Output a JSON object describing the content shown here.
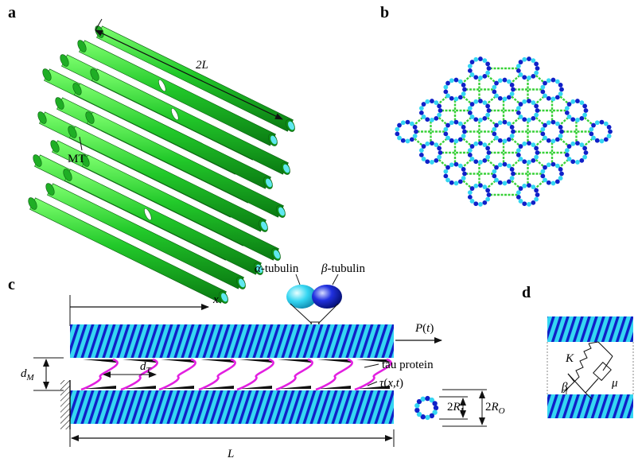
{
  "panels": {
    "a": "a",
    "b": "b",
    "c": "c",
    "d": "d"
  },
  "panel_a": {
    "length_label": "2L",
    "mt_label": "MT"
  },
  "panel_c": {
    "alpha_label": "α-tubulin",
    "beta_label": "β-tubulin",
    "x_label": "x",
    "force_label": "P(t)",
    "dM_label": "d_M",
    "dT_label": "d_T",
    "tau_protein_label": "tau protein",
    "tau_label": "τ(x,t)",
    "ri_label": "2R_I",
    "ro_label": "2R_O",
    "length_label": "L"
  },
  "panel_d": {
    "spring_label": "K",
    "damper_label": "μ",
    "angle_label": "β"
  },
  "colors": {
    "mt_green": "#22c92a",
    "mt_green_dark": "#0d8a14",
    "mt_end": "#5fe8f0",
    "tubulin_alpha": "#35d6f2",
    "tubulin_beta": "#1020c8",
    "tau_pink": "#e21fe0",
    "crosslink_green": "#3ad13a"
  }
}
